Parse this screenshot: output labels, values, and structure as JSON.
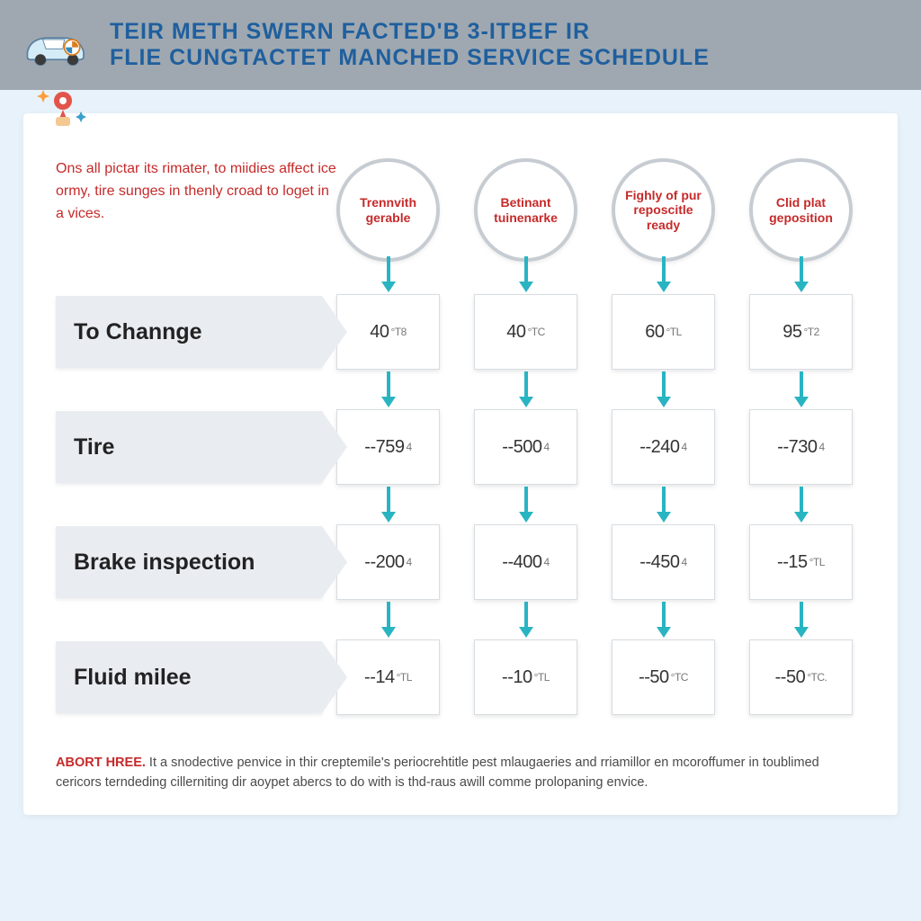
{
  "header": {
    "line1": "TEIR METH SWERN FACTED'B 3-ITBEF IR",
    "line2": "FLIE CUNGTACTET MANCHED SERVICE SCHEDULE"
  },
  "intro": "Ons all pictar its rimater, to miidies affect ice ormy, tire sunges in thenly croad to loget in a vices.",
  "columns": [
    {
      "line1": "Trennvith",
      "line2": "gerable"
    },
    {
      "line1": "Betinant",
      "line2": "tuinenarke"
    },
    {
      "line1": "Fighly of pur",
      "line2": "reposcitle ready"
    },
    {
      "line1": "Clid plat",
      "line2": "geposition"
    }
  ],
  "rows": [
    {
      "label": "To Channge",
      "cells": [
        {
          "v": "40",
          "u": "°T8"
        },
        {
          "v": "40",
          "u": "°TC"
        },
        {
          "v": "60",
          "u": "°TL"
        },
        {
          "v": "95",
          "u": "°T2"
        }
      ]
    },
    {
      "label": "Tire",
      "cells": [
        {
          "v": "--759",
          "u": "4"
        },
        {
          "v": "--500",
          "u": "4"
        },
        {
          "v": "--240",
          "u": "4"
        },
        {
          "v": "--730",
          "u": "4"
        }
      ]
    },
    {
      "label": "Brake inspection",
      "cells": [
        {
          "v": "--200",
          "u": "4"
        },
        {
          "v": "--400",
          "u": "4"
        },
        {
          "v": "--450",
          "u": "4"
        },
        {
          "v": "--15",
          "u": "°TL"
        }
      ]
    },
    {
      "label": "Fluid milee",
      "cells": [
        {
          "v": "--14",
          "u": "°TL"
        },
        {
          "v": "--10",
          "u": "°TL"
        },
        {
          "v": "--50",
          "u": "°TC"
        },
        {
          "v": "--50",
          "u": "°TC."
        }
      ]
    }
  ],
  "footer": {
    "lead": "ABORT HREE.",
    "text": " It a snodective penvice in thir creptemile's periocrehtitle pest mlaugaeries and rriamillor en mcoroffumer in toublimed cericors terndeding cillerniting dir aoypet abercs to do with is thd-raus awill comme prolopaning envice."
  },
  "style": {
    "header_bg": "#9fa8b0",
    "title_color": "#1f5f9e",
    "body_bg": "#e8f2fa",
    "panel_bg": "#ffffff",
    "intro_color": "#c62a2a",
    "circle_border": "#c6ccd2",
    "arrow_color": "#29b4c2",
    "row_bg": "#e9edf1",
    "cell_border": "#d7dde2"
  }
}
